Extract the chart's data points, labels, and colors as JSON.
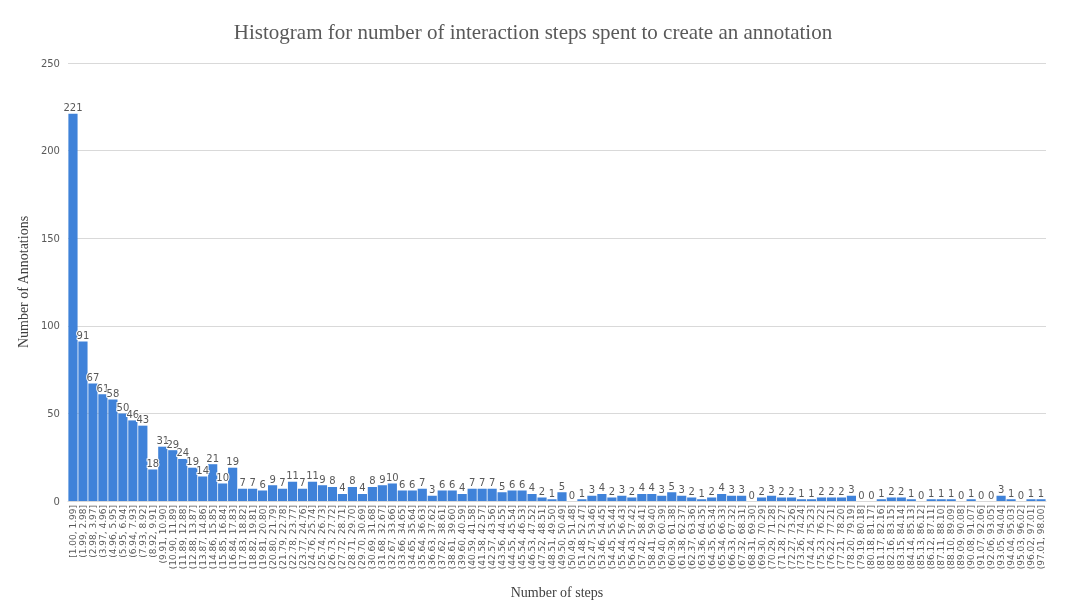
{
  "chart_data": {
    "type": "bar",
    "title": "Histogram for number of interaction steps spent to create an annotation",
    "xlabel": "Number of steps",
    "ylabel": "Number of Annotations",
    "categories": [
      "[1.00, 1.99]",
      "(1.99, 2.98]",
      "(2.98, 3.97]",
      "(3.97, 4.96]",
      "(4.96, 5.95]",
      "(5.95, 6.94]",
      "(6.94, 7.93]",
      "(7.93, 8.92]",
      "(8.92, 9.91]",
      "(9.91, 10.90]",
      "(10.90, 11.89]",
      "(11.89, 12.88]",
      "(12.88, 13.87]",
      "(13.87, 14.86]",
      "(14.86, 15.85]",
      "(15.85, 16.84]",
      "(16.84, 17.83]",
      "(17.83, 18.82]",
      "(18.82, 19.81]",
      "(19.81, 20.80]",
      "(20.80, 21.79]",
      "(21.79, 22.78]",
      "(22.78, 23.77]",
      "(23.77, 24.76]",
      "(24.76, 25.74]",
      "(25.74, 26.73]",
      "(26.73, 27.72]",
      "(27.72, 28.71]",
      "(28.71, 29.70]",
      "(29.70, 30.69]",
      "(30.69, 31.68]",
      "(31.68, 32.67]",
      "(32.67, 33.66]",
      "(33.66, 34.65]",
      "(34.65, 35.64]",
      "(35.64, 36.63]",
      "(36.63, 37.62]",
      "(37.62, 38.61]",
      "(38.61, 39.60]",
      "(39.60, 40.59]",
      "(40.59, 41.58]",
      "(41.58, 42.57]",
      "(42.57, 43.56]",
      "(43.56, 44.55]",
      "(44.55, 45.54]",
      "(45.54, 46.53]",
      "(46.53, 47.52]",
      "(47.52, 48.51]",
      "(48.51, 49.50]",
      "(49.50, 50.49]",
      "(50.49, 51.48]",
      "(51.48, 52.47]",
      "(52.47, 53.46]",
      "(53.46, 54.45]",
      "(54.45, 55.44]",
      "(55.44, 56.43]",
      "(56.43, 57.42]",
      "(57.42, 58.41]",
      "(58.41, 59.40]",
      "(59.40, 60.39]",
      "(60.39, 61.38]",
      "(61.38, 62.37]",
      "(62.37, 63.36]",
      "(63.36, 64.35]",
      "(64.35, 65.34]",
      "(65.34, 66.33]",
      "(66.33, 67.32]",
      "(67.32, 68.31]",
      "(68.31, 69.30]",
      "(69.30, 70.29]",
      "(70.29, 71.28]",
      "(71.28, 72.27]",
      "(72.27, 73.26]",
      "(73.26, 74.24]",
      "(74.24, 75.23]",
      "(75.23, 76.22]",
      "(76.22, 77.21]",
      "(77.21, 78.20]",
      "(78.20, 79.19]",
      "(79.19, 80.18]",
      "(80.18, 81.17]",
      "(81.17, 82.16]",
      "(82.16, 83.15]",
      "(83.15, 84.14]",
      "(84.14, 85.13]",
      "(85.13, 86.12]",
      "(86.12, 87.11]",
      "(87.11, 88.10]",
      "(88.10, 89.09]",
      "(89.09, 90.08]",
      "(90.08, 91.07]",
      "(91.07, 92.06]",
      "(92.06, 93.05]",
      "(93.05, 94.04]",
      "(94.04, 95.03]",
      "(95.03, 96.02]",
      "(96.02, 97.01]",
      "(97.01, 98.00]"
    ],
    "values": [
      221,
      91,
      67,
      61,
      58,
      50,
      46,
      43,
      18,
      31,
      29,
      24,
      19,
      14,
      21,
      10,
      19,
      7,
      7,
      6,
      9,
      7,
      11,
      7,
      11,
      9,
      8,
      4,
      8,
      4,
      8,
      9,
      10,
      6,
      6,
      7,
      3,
      6,
      6,
      4,
      7,
      7,
      7,
      5,
      6,
      6,
      4,
      2,
      1,
      5,
      0,
      1,
      3,
      4,
      2,
      3,
      2,
      4,
      4,
      3,
      5,
      3,
      2,
      1,
      2,
      4,
      3,
      3,
      0,
      2,
      3,
      2,
      2,
      1,
      1,
      2,
      2,
      2,
      3,
      0,
      0,
      1,
      2,
      2,
      1,
      0,
      1,
      1,
      1,
      0,
      1,
      0,
      0,
      3,
      1,
      0,
      1,
      1
    ],
    "color": "#3f82d9",
    "ylim": [
      0,
      250
    ],
    "yticks": [
      0,
      50,
      100,
      150,
      200,
      250
    ],
    "grid": "y",
    "data_labels": true
  }
}
